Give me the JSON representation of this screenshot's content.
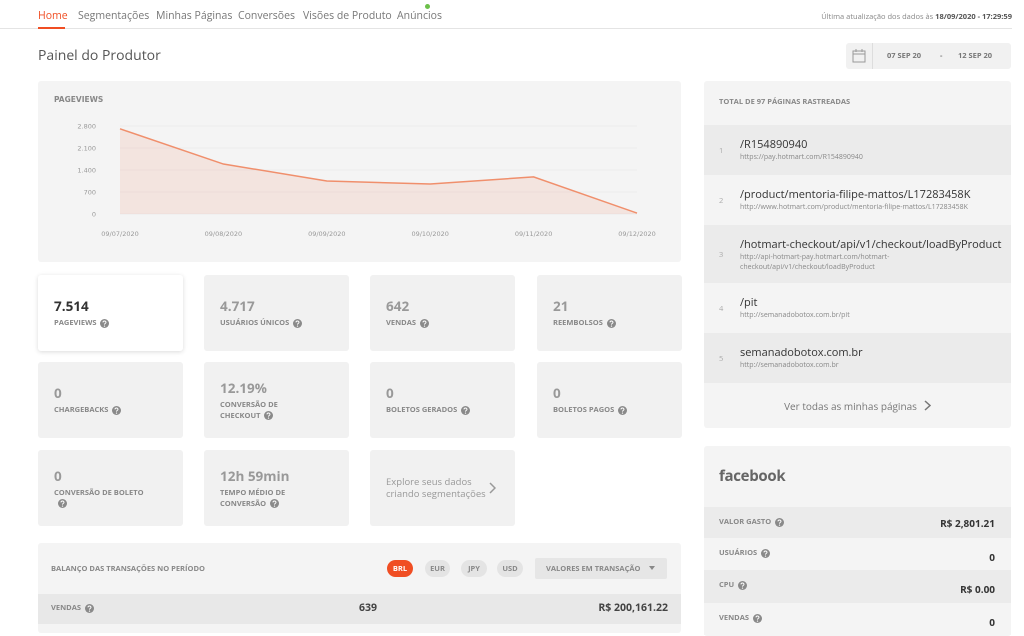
{
  "nav": {
    "tabs": [
      "Home",
      "Segmentações",
      "Minhas Páginas",
      "Conversões",
      "Visões de Produto",
      "Anúncios"
    ],
    "last_update_label": "Última atualização dos dados às",
    "last_update_value": "18/09/2020 - 17:29:59"
  },
  "header": {
    "title": "Painel do Produtor"
  },
  "date_range": {
    "start": "07 SEP 20",
    "separator": "-",
    "end": "12 SEP 20"
  },
  "chart_data": {
    "type": "line",
    "title": "PAGEVIEWS",
    "categories": [
      "09/07/2020",
      "09/08/2020",
      "09/09/2020",
      "09/10/2020",
      "09/11/2020",
      "09/12/2020"
    ],
    "series": [
      {
        "name": "PAGEVIEWS",
        "color": "#f08f6c",
        "values": [
          2710,
          1590,
          1050,
          955,
          1180,
          29
        ]
      }
    ],
    "ylim": [
      0,
      2800
    ],
    "yticks": [
      0,
      700,
      {
        "value": 1400,
        "label": "1.400"
      },
      {
        "value": 2100,
        "label": "2.100"
      },
      {
        "value": 2800,
        "label": "2.800"
      }
    ],
    "grid": true
  },
  "stats": [
    {
      "value": "7.514",
      "label": "PAGEVIEWS"
    },
    {
      "value": "4.717",
      "label": "USUÁRIOS ÚNICOS"
    },
    {
      "value": "642",
      "label": "VENDAS"
    },
    {
      "value": "21",
      "label": "REEMBOLSOS"
    },
    {
      "value": "0",
      "label": "CHARGEBACKS"
    },
    {
      "value": "12.19%",
      "label": "CONVERSÃO DE CHECKOUT"
    },
    {
      "value": "0",
      "label": "BOLETOS GERADOS"
    },
    {
      "value": "0",
      "label": "BOLETOS PAGOS"
    },
    {
      "value": "0",
      "label": "CONVERSÃO DE BOLETO"
    },
    {
      "value": "12h 59min",
      "label": "TEMPO MÉDIO DE CONVERSÃO"
    }
  ],
  "explore": {
    "text": "Explore seus dados criando segmentações"
  },
  "transactions": {
    "title": "BALANÇO DAS TRANSAÇÕES NO PERÍODO",
    "currencies": [
      "BRL",
      "EUR",
      "JPY",
      "USD"
    ],
    "dropdown": "VALORES EM TRANSAÇÃO",
    "rows": [
      {
        "label": "VENDAS",
        "count": "639",
        "amount": "R$ 200,161.22"
      }
    ]
  },
  "pages": {
    "title": "TOTAL DE 97 PÁGINAS RASTREADAS",
    "items": [
      {
        "index": 1,
        "path": "/R154890940",
        "url": "https://pay.hotmart.com/R154890940"
      },
      {
        "index": 2,
        "path": "/product/mentoria-filipe-mattos/L17283458K",
        "url": "http://www.hotmart.com/product/mentoria-filipe-mattos/L17283458K"
      },
      {
        "index": 3,
        "path": "/hotmart-checkout/api/v1/checkout/loadByProduct",
        "url": "http://api-hotmart-pay.hotmart.com/hotmart-checkout/api/v1/checkout/loadByProduct"
      },
      {
        "index": 4,
        "path": "/pit",
        "url": "http://semanadobotox.com.br/pit"
      },
      {
        "index": 5,
        "path": "semanadobotox.com.br",
        "url": "http://semanadobotox.com.br"
      }
    ],
    "link": "Ver todas as minhas páginas"
  },
  "facebook": {
    "title": "facebook",
    "rows": [
      {
        "label": "VALOR GASTO",
        "value": "R$ 2,801.21"
      },
      {
        "label": "USUÁRIOS",
        "value": "0"
      },
      {
        "label": "CPU",
        "value": "R$ 0.00"
      },
      {
        "label": "VENDAS",
        "value": "0"
      }
    ]
  }
}
